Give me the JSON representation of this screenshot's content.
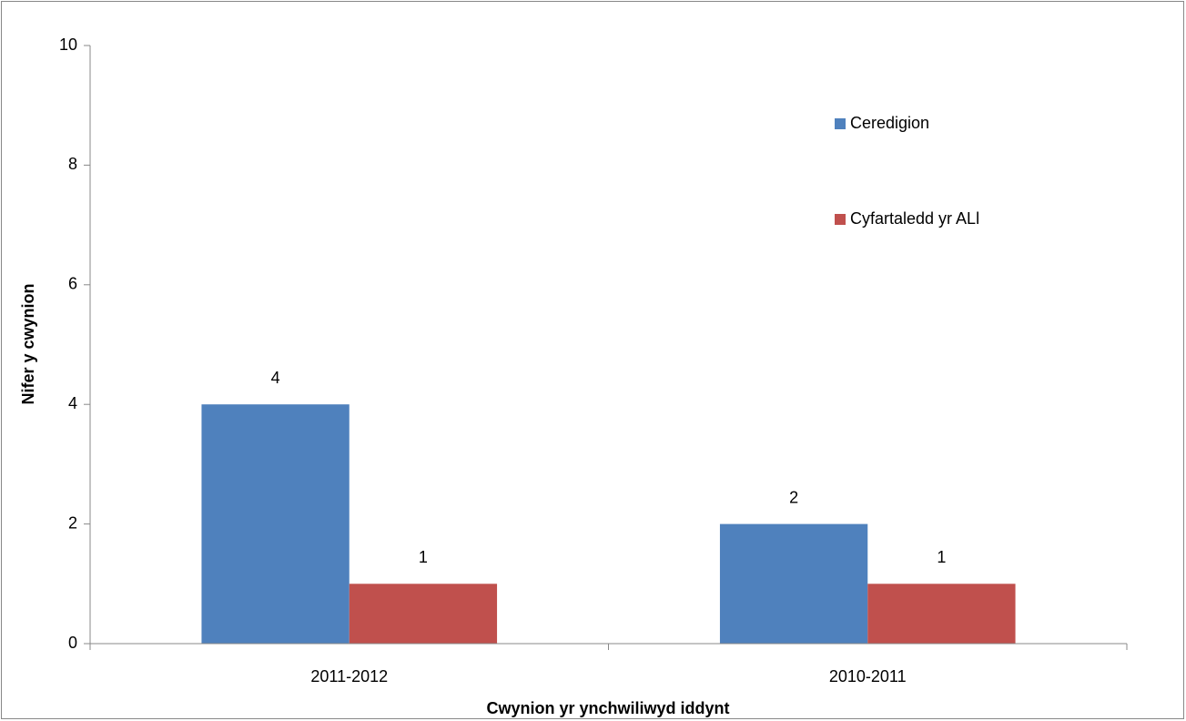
{
  "chart_data": {
    "type": "bar",
    "x_label": "Cwynion yr ynchwiliwyd iddynt",
    "y_label": "Nifer y cwynion",
    "categories": [
      "2011-2012",
      "2010-2011"
    ],
    "series": [
      {
        "name": "Ceredigion",
        "color": "#4f81bd",
        "values": [
          4,
          2
        ]
      },
      {
        "name": "Cyfartaledd yr ALl",
        "color": "#c0504d",
        "values": [
          1,
          1
        ]
      }
    ],
    "ylim": [
      0,
      10
    ],
    "yticks": [
      0,
      2,
      4,
      6,
      8,
      10
    ],
    "grid": false,
    "legend": "right"
  }
}
